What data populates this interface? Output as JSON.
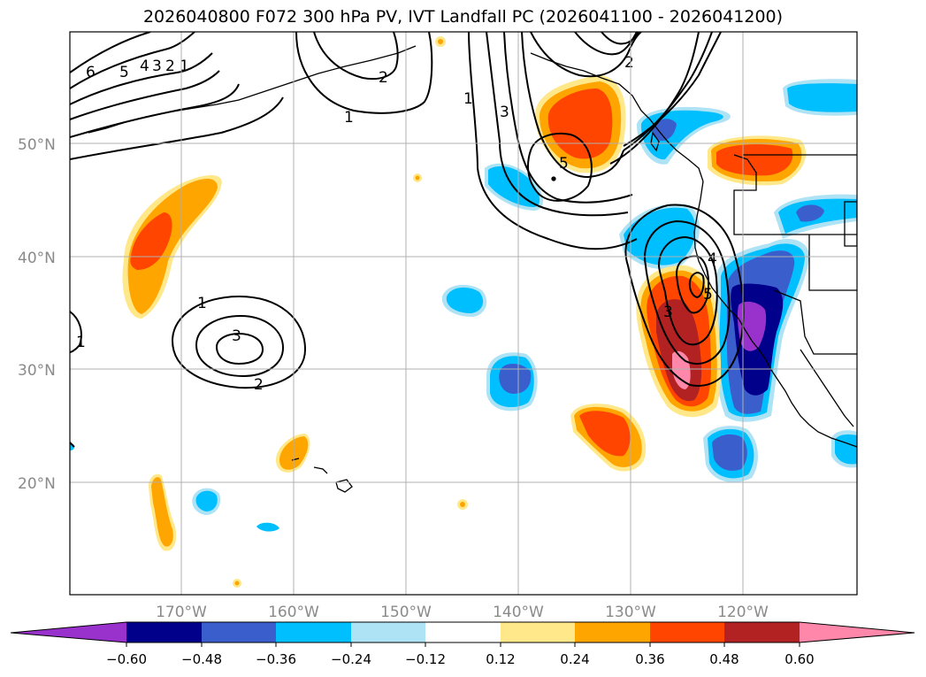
{
  "title": "2026040800 F072 300 hPa PV, IVT Landfall PC (2026041100 - 2026041200)",
  "lon_labels": [
    "170°W",
    "160°W",
    "150°W",
    "140°W",
    "130°W",
    "120°W"
  ],
  "lat_labels": [
    "50°N",
    "40°N",
    "30°N",
    "20°N"
  ],
  "colorbar": {
    "ticks": [
      "−0.60",
      "−0.48",
      "−0.36",
      "−0.24",
      "−0.12",
      "0.12",
      "0.24",
      "0.36",
      "0.48",
      "0.60"
    ],
    "colors": [
      "#9932cc",
      "#00008b",
      "#3a5fcd",
      "#00bfff",
      "#aee2f5",
      "#ffffff",
      "#ffe88a",
      "#ffa500",
      "#ff4500",
      "#b22222",
      "#ff88aa"
    ]
  },
  "contour_labels": [
    "6",
    "5",
    "4",
    "3",
    "2",
    "1",
    "2",
    "1",
    "1",
    "3",
    "2",
    "5",
    "4",
    "5",
    "3",
    "1",
    "3",
    "2",
    "1"
  ]
}
